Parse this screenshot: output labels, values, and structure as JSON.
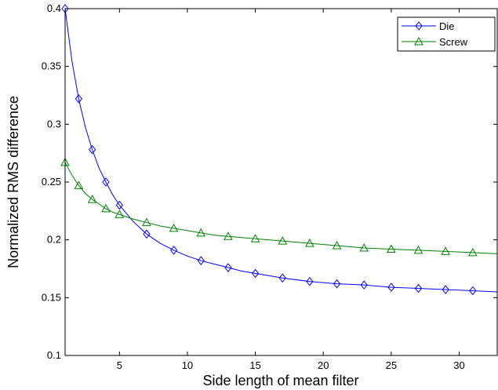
{
  "chart_data": {
    "type": "line",
    "xlabel": "Side length of mean filter",
    "ylabel": "Normalized RMS difference",
    "xlim": [
      1,
      32.8
    ],
    "ylim": [
      0.1,
      0.4
    ],
    "xticks": [
      5,
      10,
      15,
      20,
      25,
      30
    ],
    "yticks": [
      0.1,
      0.15,
      0.2,
      0.25,
      0.3,
      0.35,
      0.4
    ],
    "grid": false,
    "legend_position": "top-right",
    "series": [
      {
        "name": "Die",
        "color": "#0000ff",
        "marker": "diamond",
        "x": [
          1,
          2,
          3,
          4,
          5,
          7,
          9,
          11,
          13,
          15,
          17,
          19,
          21,
          23,
          25,
          27,
          29,
          31
        ],
        "y": [
          0.4,
          0.322,
          0.278,
          0.25,
          0.23,
          0.205,
          0.191,
          0.182,
          0.176,
          0.171,
          0.167,
          0.164,
          0.162,
          0.161,
          0.159,
          0.158,
          0.157,
          0.156
        ],
        "curve_x": [
          1,
          1.5,
          2,
          2.5,
          3,
          3.5,
          4,
          4.5,
          5,
          6,
          7,
          8,
          9,
          10,
          11,
          12,
          13,
          14,
          15,
          17,
          19,
          21,
          23,
          25,
          27,
          29,
          31,
          32.8
        ],
        "curve_y": [
          0.4,
          0.355,
          0.322,
          0.297,
          0.278,
          0.262,
          0.25,
          0.239,
          0.23,
          0.216,
          0.205,
          0.197,
          0.191,
          0.186,
          0.182,
          0.179,
          0.176,
          0.173,
          0.171,
          0.167,
          0.164,
          0.162,
          0.161,
          0.159,
          0.158,
          0.157,
          0.156,
          0.155
        ]
      },
      {
        "name": "Screw",
        "color": "#008000",
        "marker": "triangle",
        "x": [
          1,
          2,
          3,
          4,
          5,
          7,
          9,
          11,
          13,
          15,
          17,
          19,
          21,
          23,
          25,
          27,
          29,
          31
        ],
        "y": [
          0.267,
          0.247,
          0.235,
          0.227,
          0.222,
          0.215,
          0.21,
          0.206,
          0.203,
          0.201,
          0.199,
          0.197,
          0.195,
          0.193,
          0.192,
          0.191,
          0.19,
          0.189
        ],
        "curve_x": [
          1,
          1.5,
          2,
          2.5,
          3,
          3.5,
          4,
          4.5,
          5,
          6,
          7,
          8,
          9,
          10,
          11,
          12,
          13,
          14,
          15,
          17,
          19,
          21,
          23,
          25,
          27,
          29,
          31,
          32.8
        ],
        "curve_y": [
          0.267,
          0.256,
          0.247,
          0.24,
          0.235,
          0.231,
          0.227,
          0.224,
          0.222,
          0.218,
          0.215,
          0.212,
          0.21,
          0.208,
          0.206,
          0.204,
          0.203,
          0.202,
          0.201,
          0.199,
          0.197,
          0.195,
          0.193,
          0.192,
          0.191,
          0.19,
          0.189,
          0.188
        ]
      }
    ]
  }
}
